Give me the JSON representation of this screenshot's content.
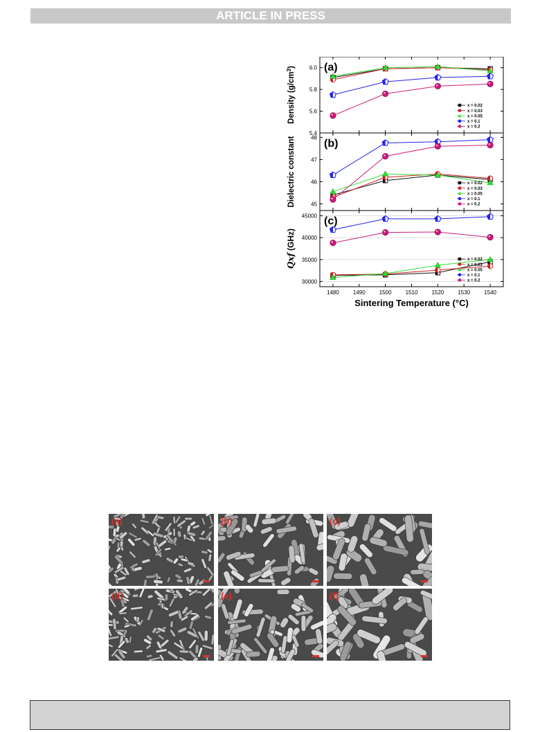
{
  "header": {
    "banner": "ARTICLE IN PRESS"
  },
  "figure": {
    "xlabel": "Sintering Temperature (°C)",
    "legend_entries": [
      "x = 0.02",
      "x = 0.03",
      "x = 0.05",
      "x = 0.1",
      "x = 0.2"
    ],
    "series_colors": [
      "#111111",
      "#cc1f1f",
      "#33dd33",
      "#2222ee",
      "#cc1a7a"
    ],
    "panels_text": [
      {
        "label": "(a)",
        "ylabel": "Density (g/cm3)"
      },
      {
        "label": "(b)",
        "ylabel": "Dielectric constant"
      },
      {
        "label": "(c)",
        "ylabel": "Qxf (GHz)"
      }
    ]
  },
  "chart_data": [
    {
      "type": "line",
      "title": "(a)",
      "xlabel": "Sintering Temperature (°C)",
      "ylabel": "Density (g/cm3)",
      "x": [
        1480,
        1500,
        1520,
        1540
      ],
      "xlim": [
        1475,
        1545
      ],
      "ylim": [
        5.4,
        6.1
      ],
      "yticks": [
        5.4,
        5.6,
        5.8,
        6.0
      ],
      "legend_position": "bottom-right",
      "series": [
        {
          "name": "x = 0.02",
          "values": [
            5.91,
            5.99,
            6.0,
            5.99
          ]
        },
        {
          "name": "x = 0.03",
          "values": [
            5.89,
            5.99,
            6.0,
            5.98
          ]
        },
        {
          "name": "x = 0.05",
          "values": [
            5.92,
            6.0,
            6.01,
            5.97
          ]
        },
        {
          "name": "x = 0.1",
          "values": [
            5.75,
            5.87,
            5.91,
            5.92
          ]
        },
        {
          "name": "x = 0.2",
          "values": [
            5.56,
            5.76,
            5.83,
            5.85
          ]
        }
      ]
    },
    {
      "type": "line",
      "title": "(b)",
      "xlabel": "Sintering Temperature (°C)",
      "ylabel": "Dielectric constant",
      "x": [
        1480,
        1500,
        1520,
        1540
      ],
      "xlim": [
        1475,
        1545
      ],
      "ylim": [
        44.7,
        48.2
      ],
      "yticks": [
        45,
        46,
        47,
        48
      ],
      "legend_position": "bottom-right",
      "series": [
        {
          "name": "x = 0.02",
          "values": [
            45.4,
            46.05,
            46.3,
            46.1
          ]
        },
        {
          "name": "x = 0.03",
          "values": [
            45.3,
            46.2,
            46.35,
            46.15
          ]
        },
        {
          "name": "x = 0.05",
          "values": [
            45.55,
            46.35,
            46.3,
            45.95
          ]
        },
        {
          "name": "x = 0.1",
          "values": [
            46.3,
            47.75,
            47.8,
            47.9
          ]
        },
        {
          "name": "x = 0.2",
          "values": [
            45.2,
            47.15,
            47.6,
            47.65
          ]
        }
      ]
    },
    {
      "type": "line",
      "title": "(c)",
      "xlabel": "Sintering Temperature (°C)",
      "ylabel": "Qxf (GHz)",
      "x": [
        1480,
        1500,
        1520,
        1540
      ],
      "xlim": [
        1475,
        1545
      ],
      "ylim": [
        28800,
        46200
      ],
      "yticks": [
        30000,
        35000,
        40000,
        45000
      ],
      "legend_position": "bottom-right",
      "series": [
        {
          "name": "x = 0.02",
          "values": [
            31400,
            31500,
            32000,
            34500
          ]
        },
        {
          "name": "x = 0.03",
          "values": [
            31500,
            31700,
            32600,
            33500
          ]
        },
        {
          "name": "x = 0.05",
          "values": [
            30900,
            31800,
            33700,
            35000
          ]
        },
        {
          "name": "x = 0.1",
          "values": [
            41800,
            44300,
            44300,
            44800
          ]
        },
        {
          "name": "x = 0.2",
          "values": [
            38800,
            41200,
            41300,
            40100
          ]
        }
      ]
    }
  ],
  "sem": {
    "labels": [
      "(a)",
      "(b)",
      "(c)",
      "(d)",
      "(e)",
      "(f)"
    ]
  }
}
